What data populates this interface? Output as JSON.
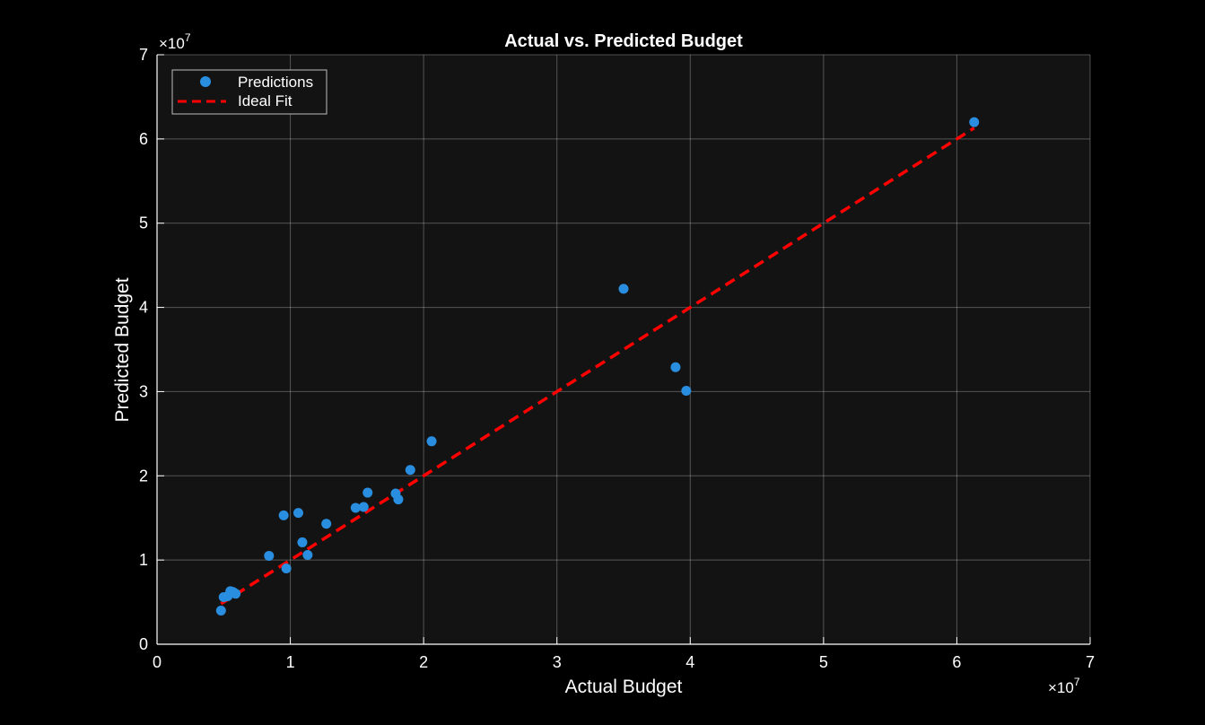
{
  "chart_data": {
    "type": "scatter",
    "title": "Actual vs. Predicted Budget",
    "xlabel": "Actual Budget",
    "ylabel": "Predicted Budget",
    "xlim": [
      0,
      7
    ],
    "ylim": [
      0,
      7
    ],
    "x_ticks": [
      "0",
      "1",
      "2",
      "3",
      "4",
      "5",
      "6",
      "7"
    ],
    "y_ticks": [
      "0",
      "1",
      "2",
      "3",
      "4",
      "5",
      "6",
      "7"
    ],
    "x_multiplier": "×10",
    "x_exponent": "7",
    "y_multiplier": "×10",
    "y_exponent": "7",
    "grid": true,
    "legend": {
      "placement": "top-left",
      "entries": [
        "Predictions",
        "Ideal Fit"
      ]
    },
    "series": [
      {
        "name": "Predictions",
        "kind": "scatter",
        "color": "#2a8ee0",
        "points": [
          {
            "x": 0.48,
            "y": 0.4
          },
          {
            "x": 0.5,
            "y": 0.56
          },
          {
            "x": 0.53,
            "y": 0.57
          },
          {
            "x": 0.55,
            "y": 0.63
          },
          {
            "x": 0.57,
            "y": 0.62
          },
          {
            "x": 0.59,
            "y": 0.6
          },
          {
            "x": 0.84,
            "y": 1.05
          },
          {
            "x": 0.95,
            "y": 1.53
          },
          {
            "x": 0.97,
            "y": 0.9
          },
          {
            "x": 1.06,
            "y": 1.56
          },
          {
            "x": 1.09,
            "y": 1.21
          },
          {
            "x": 1.13,
            "y": 1.06
          },
          {
            "x": 1.27,
            "y": 1.43
          },
          {
            "x": 1.49,
            "y": 1.62
          },
          {
            "x": 1.55,
            "y": 1.63
          },
          {
            "x": 1.58,
            "y": 1.8
          },
          {
            "x": 1.79,
            "y": 1.79
          },
          {
            "x": 1.81,
            "y": 1.72
          },
          {
            "x": 1.9,
            "y": 2.07
          },
          {
            "x": 2.06,
            "y": 2.41
          },
          {
            "x": 3.5,
            "y": 4.22
          },
          {
            "x": 3.89,
            "y": 3.29
          },
          {
            "x": 3.97,
            "y": 3.01
          },
          {
            "x": 6.13,
            "y": 6.2
          }
        ]
      },
      {
        "name": "Ideal Fit",
        "kind": "line",
        "style": "dashed",
        "color": "#ff0000",
        "x": [
          0.48,
          6.13
        ],
        "y": [
          0.48,
          6.13
        ]
      }
    ]
  }
}
